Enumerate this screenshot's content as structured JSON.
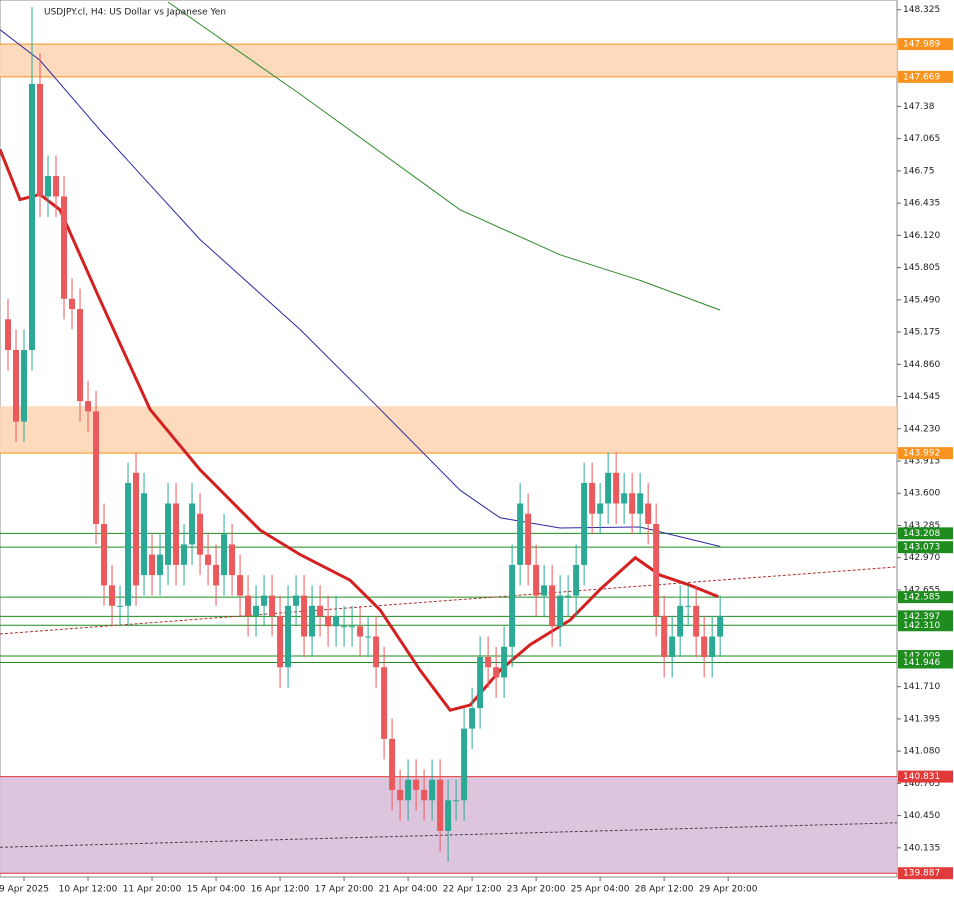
{
  "chart_data": {
    "type": "candlestick",
    "title": "USDJPY.cl, H4:  US Dollar vs Japanese Yen",
    "up_color": "#2ba994",
    "down_color": "#ea5a5c",
    "xlim": [
      -1,
      111.1
    ],
    "ylim": [
      139.85,
      148.42
    ],
    "yticks": [
      148.325,
      147.38,
      147.065,
      146.75,
      146.435,
      {
        "value": 146.12,
        "label": "146.120"
      },
      145.805,
      {
        "value": 145.49,
        "label": "145.490"
      },
      145.175,
      {
        "value": 144.86,
        "label": "144.860"
      },
      144.545,
      {
        "value": 144.23,
        "label": "144.230"
      },
      143.915,
      {
        "value": 143.6,
        "label": "143.600"
      },
      143.285,
      {
        "value": 142.97,
        "label": "142.970"
      },
      142.655,
      {
        "value": 141.71,
        "label": "141.710"
      },
      141.395,
      {
        "value": 141.08,
        "label": "141.080"
      },
      140.765,
      {
        "value": 140.45,
        "label": "140.450"
      },
      140.135
    ],
    "xticks": [
      {
        "value": 2,
        "label": "9 Apr 2025"
      },
      {
        "value": 10,
        "label": "10 Apr 12:00"
      },
      {
        "value": 18,
        "label": "11 Apr 20:00"
      },
      {
        "value": 26,
        "label": "15 Apr 04:00"
      },
      {
        "value": 34,
        "label": "16 Apr 12:00"
      },
      {
        "value": 42,
        "label": "17 Apr 20:00"
      },
      {
        "value": 50,
        "label": "21 Apr 04:00"
      },
      {
        "value": 58,
        "label": "22 Apr 12:00"
      },
      {
        "value": 66,
        "label": "23 Apr 20:00"
      },
      {
        "value": 74,
        "label": "25 Apr 04:00"
      },
      {
        "value": 82,
        "label": "28 Apr 12:00"
      },
      {
        "value": 90,
        "label": "29 Apr 20:00"
      }
    ],
    "open": [
      145.3,
      145.0,
      144.3,
      145.0,
      147.6,
      146.5,
      146.7,
      146.5,
      145.5,
      145.4,
      144.5,
      144.4,
      143.3,
      142.7,
      142.5,
      142.5,
      143.8,
      142.8,
      143.0,
      142.8,
      142.9,
      143.5,
      142.9,
      143.1,
      143.4,
      143.0,
      142.9,
      142.8,
      143.1,
      142.8,
      142.6,
      142.4,
      142.5,
      142.6,
      142.4,
      141.9,
      142.5,
      142.6,
      142.2,
      142.5,
      142.4,
      142.3,
      142.3,
      142.3,
      142.3,
      142.2,
      142.2,
      141.9,
      141.2,
      140.7,
      140.6,
      140.8,
      140.7,
      140.6,
      140.8,
      140.3,
      140.6,
      140.6,
      141.3,
      141.5,
      142.0,
      141.9,
      141.8,
      142.1,
      142.9,
      143.4,
      142.9,
      142.6,
      142.7,
      142.3,
      142.6,
      142.6,
      142.9,
      143.7,
      143.4,
      143.5,
      143.8,
      143.5,
      143.6,
      143.4,
      143.5,
      143.3,
      142.4,
      142.0,
      142.2,
      142.5,
      142.5,
      142.2,
      142.0,
      142.2
    ],
    "high": [
      145.5,
      145.2,
      145.2,
      148.35,
      147.9,
      146.9,
      146.9,
      146.7,
      145.7,
      145.6,
      144.7,
      144.6,
      143.5,
      142.9,
      142.7,
      143.9,
      144.0,
      143.8,
      143.2,
      143.2,
      143.7,
      143.7,
      143.3,
      143.7,
      143.6,
      143.2,
      143.1,
      143.4,
      143.3,
      143.0,
      142.8,
      142.7,
      142.8,
      142.8,
      142.6,
      142.7,
      142.8,
      142.8,
      142.7,
      142.7,
      142.6,
      142.6,
      142.5,
      142.5,
      142.5,
      142.4,
      142.4,
      142.1,
      141.4,
      140.9,
      141.0,
      141.0,
      140.9,
      141.0,
      141.0,
      140.8,
      140.8,
      141.5,
      141.7,
      142.2,
      142.2,
      142.1,
      142.3,
      143.1,
      143.7,
      143.6,
      143.1,
      142.9,
      142.9,
      142.8,
      142.8,
      143.1,
      143.9,
      143.9,
      143.7,
      144.0,
      144.0,
      143.8,
      143.8,
      143.8,
      143.7,
      143.5,
      142.6,
      142.4,
      142.7,
      142.7,
      142.7,
      142.4,
      142.4,
      142.6
    ],
    "low": [
      144.8,
      144.1,
      144.1,
      144.8,
      146.3,
      146.3,
      146.3,
      145.3,
      145.2,
      144.3,
      144.2,
      143.1,
      142.5,
      142.3,
      142.3,
      142.3,
      142.5,
      142.6,
      142.6,
      142.6,
      142.7,
      142.7,
      142.7,
      142.9,
      142.8,
      142.7,
      142.5,
      142.6,
      142.6,
      142.4,
      142.2,
      142.2,
      142.3,
      142.2,
      141.7,
      141.7,
      142.3,
      142.0,
      142.0,
      142.2,
      142.1,
      142.1,
      142.1,
      142.1,
      142.0,
      142.0,
      141.7,
      141.0,
      140.5,
      140.4,
      140.4,
      140.5,
      140.4,
      140.4,
      140.1,
      140.0,
      140.4,
      140.4,
      141.1,
      141.3,
      141.7,
      141.6,
      141.6,
      141.9,
      142.7,
      142.7,
      142.4,
      142.4,
      142.1,
      142.1,
      142.4,
      142.4,
      142.7,
      143.2,
      143.2,
      143.3,
      143.3,
      143.3,
      143.2,
      143.2,
      143.1,
      142.2,
      141.8,
      141.8,
      142.0,
      142.3,
      142.0,
      141.8,
      141.8,
      142.0
    ],
    "close": [
      145.0,
      144.3,
      145.0,
      147.6,
      146.5,
      146.7,
      146.5,
      145.5,
      145.4,
      144.5,
      144.4,
      143.3,
      142.7,
      142.5,
      142.5,
      143.7,
      142.7,
      143.6,
      142.8,
      143.0,
      143.5,
      142.9,
      143.1,
      143.5,
      143.0,
      142.9,
      142.7,
      143.2,
      142.8,
      142.6,
      142.4,
      142.5,
      142.6,
      142.4,
      141.9,
      142.5,
      142.6,
      142.2,
      142.5,
      142.4,
      142.3,
      142.4,
      142.3,
      142.3,
      142.2,
      142.2,
      141.9,
      141.2,
      140.7,
      140.6,
      140.8,
      140.7,
      140.6,
      140.8,
      140.3,
      140.6,
      140.6,
      141.3,
      141.5,
      142.0,
      141.9,
      141.8,
      142.1,
      142.9,
      143.5,
      142.9,
      142.6,
      142.7,
      142.3,
      142.6,
      142.6,
      142.9,
      143.7,
      143.4,
      143.5,
      143.8,
      143.5,
      143.6,
      143.4,
      143.6,
      143.3,
      142.4,
      142.0,
      142.2,
      142.5,
      142.5,
      142.2,
      142.0,
      142.2,
      142.4
    ],
    "zones": [
      {
        "from": 147.669,
        "to": 147.989,
        "color": "#fdd6b4"
      },
      {
        "from": 143.992,
        "to": 144.45,
        "color": "#fdd6b4"
      },
      {
        "from": 139.887,
        "to": 140.831,
        "color": "#d9bfd9"
      }
    ],
    "levels": [
      {
        "value": 147.989,
        "color": "#f7931e"
      },
      {
        "value": 147.669,
        "color": "#f7931e"
      },
      {
        "value": 143.992,
        "color": "#f7931e"
      },
      {
        "value": 143.208,
        "color": "#1e8c1e"
      },
      {
        "value": 143.073,
        "color": "#1e8c1e"
      },
      {
        "value": 142.585,
        "color": "#1e8c1e"
      },
      {
        "value": 142.397,
        "color": "#1e8c1e"
      },
      {
        "value": 142.31,
        "label": "142.310",
        "color": "#1e8c1e"
      },
      {
        "value": 142.009,
        "color": "#1e8c1e"
      },
      {
        "value": 141.946,
        "color": "#1e8c1e"
      },
      {
        "value": 140.831,
        "color": "#e03a3a"
      },
      {
        "value": 139.887,
        "color": "#e03a3a"
      }
    ],
    "lines": [
      {
        "color": "#2d8a2d",
        "width": 1,
        "x": [
          20,
          36.5,
          56.5,
          69,
          79,
          89
        ],
        "values": [
          148.4,
          147.5,
          146.37,
          145.93,
          145.68,
          145.39
        ]
      },
      {
        "color": "#2a2aa0",
        "width": 1,
        "x": [
          -1,
          4,
          11.5,
          24,
          36.5,
          46.5,
          56.5,
          61.5,
          69,
          79,
          89
        ],
        "values": [
          148.13,
          147.83,
          147.15,
          146.08,
          145.2,
          144.42,
          143.63,
          143.36,
          143.26,
          143.27,
          143.08
        ]
      },
      {
        "color": "#d42020",
        "width": 3,
        "x": [
          -1,
          1.5,
          4,
          6.5,
          11.5,
          17.75,
          24,
          31.5,
          36.5,
          42.75,
          46.5,
          51.5,
          55.25,
          57.75,
          61.5,
          65.25,
          70.25,
          74,
          78.4,
          81.5,
          85.25,
          88.75
        ],
        "values": [
          146.96,
          146.47,
          146.52,
          146.37,
          145.49,
          144.42,
          143.83,
          143.24,
          143.0,
          142.75,
          142.46,
          141.87,
          141.48,
          141.53,
          141.87,
          142.12,
          142.36,
          142.66,
          142.97,
          142.8,
          142.7,
          142.59
        ]
      },
      {
        "color": "#b03030",
        "width": 1,
        "dash": true,
        "x": [
          -1,
          111.1
        ],
        "values": [
          142.225,
          142.88
        ]
      },
      {
        "color": "#444444",
        "width": 1,
        "dash": true,
        "x": [
          -1,
          111.1
        ],
        "values": [
          140.14,
          140.38
        ]
      }
    ]
  }
}
